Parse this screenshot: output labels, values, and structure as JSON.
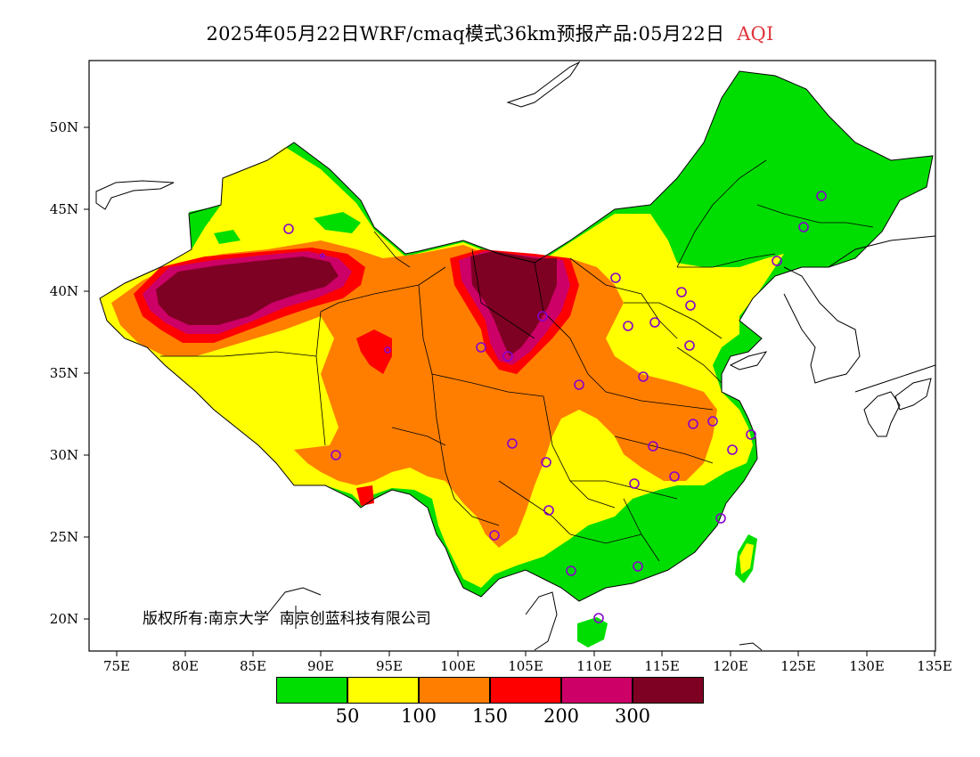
{
  "title": {
    "main": "2025年05月22日WRF/cmaq模式36km预报产品:05月22日",
    "variable": "AQI"
  },
  "map": {
    "lat_ticks": [
      "50N",
      "45N",
      "40N",
      "35N",
      "30N",
      "25N",
      "20N"
    ],
    "lon_ticks": [
      "75E",
      "80E",
      "85E",
      "90E",
      "95E",
      "100E",
      "105E",
      "110E",
      "115E",
      "120E",
      "125E",
      "130E",
      "135E"
    ],
    "copyright_prefix": "版权所有:",
    "copyright_org1": "南京大学",
    "copyright_org2": "南京创蓝科技有限公司"
  },
  "legend": {
    "colors": [
      "#00dd00",
      "#ffff00",
      "#ff7e00",
      "#ff0000",
      "#cc0066",
      "#7e0023"
    ],
    "labels": [
      "50",
      "100",
      "150",
      "200",
      "300"
    ]
  }
}
